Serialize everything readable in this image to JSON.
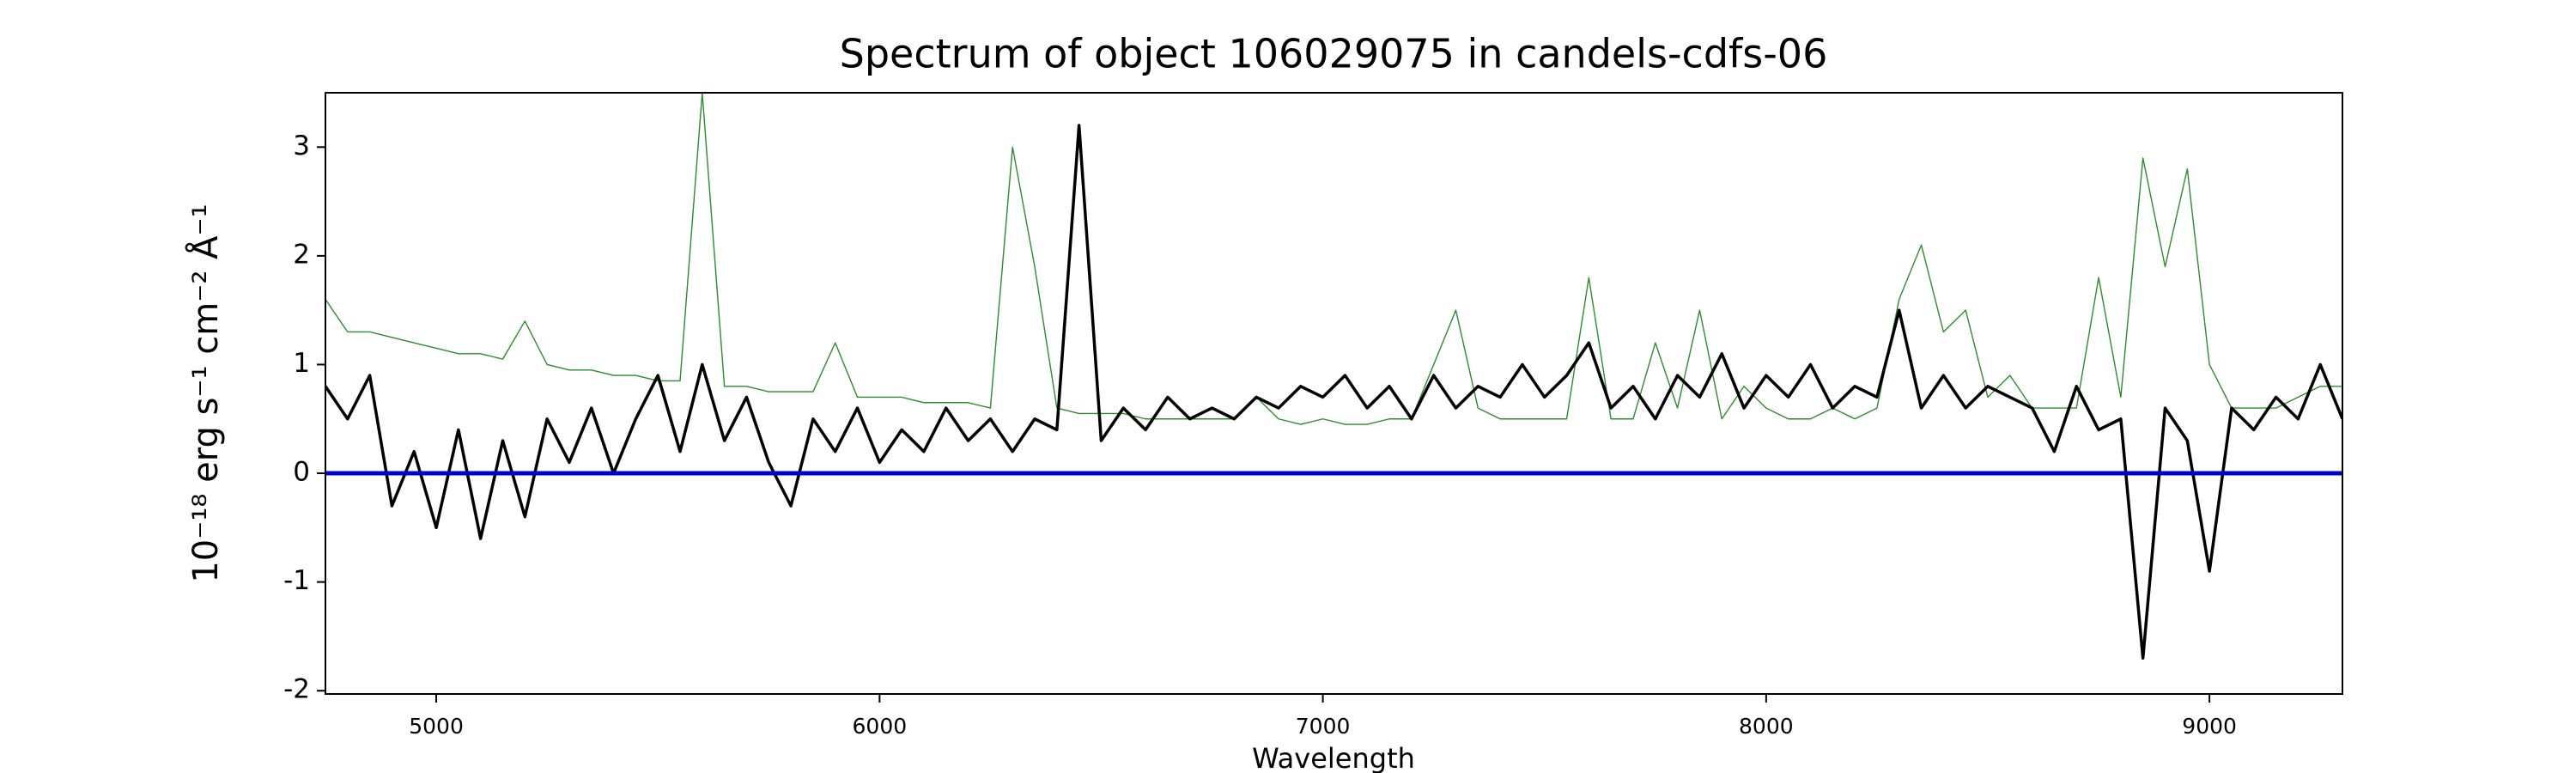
{
  "chart_data": {
    "type": "line",
    "title": "Spectrum of object 106029075 in candels-cdfs-06",
    "x_label": "Wavelength",
    "y_label": "10⁻¹⁸ erg s⁻¹ cm⁻² Å⁻¹",
    "x": [
      4750,
      4800,
      4850,
      4900,
      4950,
      5000,
      5050,
      5100,
      5150,
      5200,
      5250,
      5300,
      5350,
      5400,
      5450,
      5500,
      5550,
      5600,
      5650,
      5700,
      5750,
      5800,
      5850,
      5900,
      5950,
      6000,
      6050,
      6100,
      6150,
      6200,
      6250,
      6300,
      6350,
      6400,
      6450,
      6500,
      6550,
      6600,
      6650,
      6700,
      6750,
      6800,
      6850,
      6900,
      6950,
      7000,
      7050,
      7100,
      7150,
      7200,
      7250,
      7300,
      7350,
      7400,
      7450,
      7500,
      7550,
      7600,
      7650,
      7700,
      7750,
      7800,
      7850,
      7900,
      7950,
      8000,
      8050,
      8100,
      8150,
      8200,
      8250,
      8300,
      8350,
      8400,
      8450,
      8500,
      8550,
      8600,
      8650,
      8700,
      8750,
      8800,
      8850,
      8900,
      8950,
      9000,
      9050,
      9100,
      9150,
      9200,
      9250,
      9300
    ],
    "series": [
      {
        "color": "#2e8b2e",
        "width": 1.4,
        "values": [
          1.6,
          1.3,
          1.3,
          1.25,
          1.2,
          1.15,
          1.1,
          1.1,
          1.05,
          1.4,
          1.0,
          0.95,
          0.95,
          0.9,
          0.9,
          0.85,
          0.85,
          3.5,
          0.8,
          0.8,
          0.75,
          0.75,
          0.75,
          1.2,
          0.7,
          0.7,
          0.7,
          0.65,
          0.65,
          0.65,
          0.6,
          3.0,
          1.9,
          0.6,
          0.55,
          0.55,
          0.55,
          0.5,
          0.5,
          0.5,
          0.5,
          0.5,
          0.7,
          0.5,
          0.45,
          0.5,
          0.45,
          0.45,
          0.5,
          0.5,
          1.0,
          1.5,
          0.6,
          0.5,
          0.5,
          0.5,
          0.5,
          1.8,
          0.5,
          0.5,
          1.2,
          0.6,
          1.5,
          0.5,
          0.8,
          0.6,
          0.5,
          0.5,
          0.6,
          0.5,
          0.6,
          1.6,
          2.1,
          1.3,
          1.5,
          0.7,
          0.9,
          0.6,
          0.6,
          0.6,
          1.8,
          0.7,
          2.9,
          1.9,
          2.8,
          1.0,
          0.6,
          0.6,
          0.6,
          0.7,
          0.8,
          0.8
        ]
      },
      {
        "color": "#000000",
        "width": 3.5,
        "values": [
          0.8,
          0.5,
          0.9,
          -0.3,
          0.2,
          -0.5,
          0.4,
          -0.6,
          0.3,
          -0.4,
          0.5,
          0.1,
          0.6,
          0.0,
          0.5,
          0.9,
          0.2,
          1.0,
          0.3,
          0.7,
          0.1,
          -0.3,
          0.5,
          0.2,
          0.6,
          0.1,
          0.4,
          0.2,
          0.6,
          0.3,
          0.5,
          0.2,
          0.5,
          0.4,
          3.2,
          0.3,
          0.6,
          0.4,
          0.7,
          0.5,
          0.6,
          0.5,
          0.7,
          0.6,
          0.8,
          0.7,
          0.9,
          0.6,
          0.8,
          0.5,
          0.9,
          0.6,
          0.8,
          0.7,
          1.0,
          0.7,
          0.9,
          1.2,
          0.6,
          0.8,
          0.5,
          0.9,
          0.7,
          1.1,
          0.6,
          0.9,
          0.7,
          1.0,
          0.6,
          0.8,
          0.7,
          1.5,
          0.6,
          0.9,
          0.6,
          0.8,
          0.7,
          0.6,
          0.2,
          0.8,
          0.4,
          0.5,
          -1.7,
          0.6,
          0.3,
          -0.9,
          0.6,
          0.4,
          0.7,
          0.5,
          1.0,
          0.5
        ]
      }
    ],
    "reference_line": {
      "value": 0,
      "color": "#0000cc"
    },
    "xlim": [
      4750,
      9300
    ],
    "ylim": [
      -2.03,
      3.5
    ],
    "xticks": [
      5000,
      6000,
      7000,
      8000,
      9000
    ],
    "yticks": [
      -2,
      -1,
      0,
      1,
      2,
      3
    ]
  }
}
